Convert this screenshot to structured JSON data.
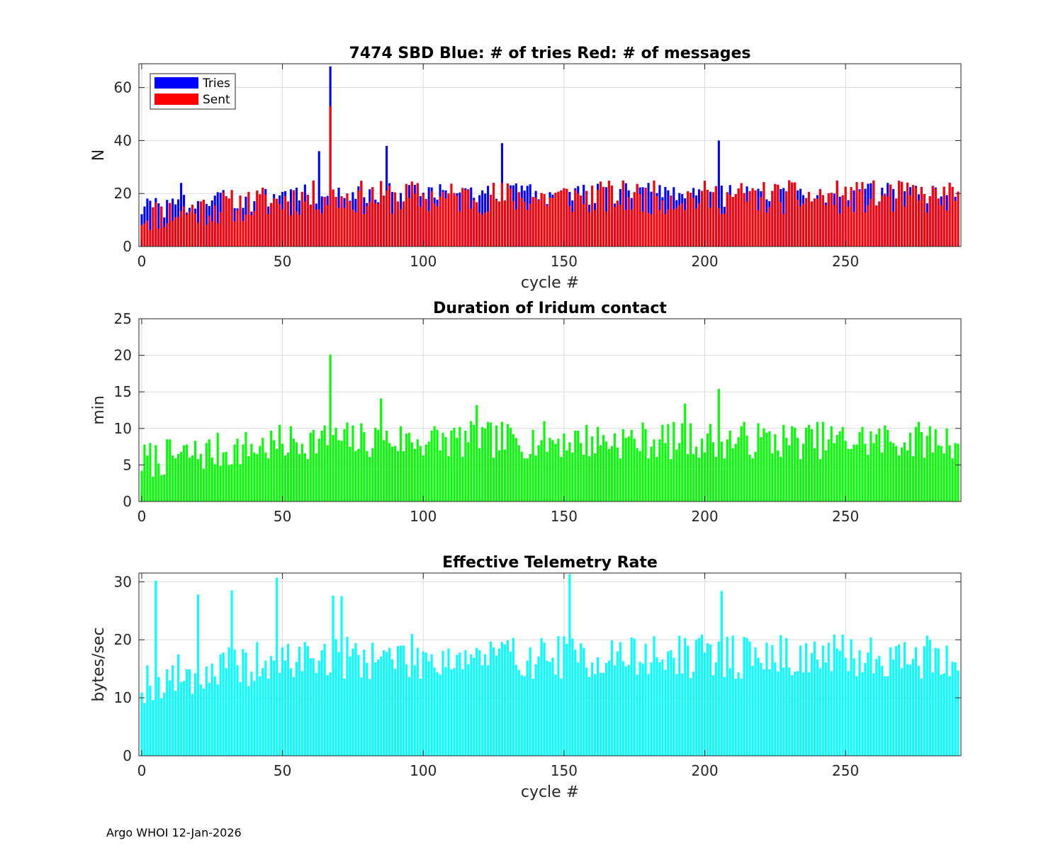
{
  "chart_data": [
    {
      "type": "bar",
      "stacked": true,
      "title": "7474 SBD  Blue: # of tries   Red: # of messages",
      "xlabel": "cycle #",
      "ylabel": "N",
      "xlim": [
        -1,
        291
      ],
      "ylim": [
        0,
        69
      ],
      "xticks": [
        0,
        50,
        100,
        150,
        200,
        250
      ],
      "yticks": [
        0,
        20,
        40,
        60
      ],
      "grid": true,
      "legend": "top-left",
      "series": [
        {
          "name": "Tries",
          "color": "#0000ff",
          "base": 10,
          "amplitude": 14,
          "seed": 3,
          "spikes": [
            [
              67,
              68
            ],
            [
              205,
              40
            ],
            [
              14,
              24
            ],
            [
              63,
              36
            ],
            [
              87,
              38
            ],
            [
              128,
              39
            ]
          ]
        },
        {
          "name": "Sent",
          "color": "#ff0000",
          "base": 5,
          "amplitude": 20,
          "seed": 11,
          "spikes": [
            [
              67,
              53
            ]
          ]
        }
      ]
    },
    {
      "type": "bar",
      "title": "Duration of Iridum contact",
      "xlabel": "",
      "ylabel": "min",
      "xlim": [
        -1,
        291
      ],
      "ylim": [
        0,
        25
      ],
      "xticks": [
        0,
        50,
        100,
        150,
        200,
        250
      ],
      "yticks": [
        0,
        5,
        10,
        15,
        20,
        25
      ],
      "grid": true,
      "series": [
        {
          "name": "Duration",
          "color": "#00ff00",
          "base": 3,
          "amplitude": 8,
          "seed": 7,
          "spikes": [
            [
              67,
              20.1
            ],
            [
              205,
              15.4
            ],
            [
              85,
              14.1
            ],
            [
              193,
              13.4
            ],
            [
              119,
              13.2
            ]
          ]
        }
      ]
    },
    {
      "type": "bar",
      "title": "Effective Telemetry Rate",
      "xlabel": "cycle #",
      "ylabel": "bytes/sec",
      "xlim": [
        -1,
        291
      ],
      "ylim": [
        0,
        31.5
      ],
      "xticks": [
        0,
        50,
        100,
        150,
        200,
        250
      ],
      "yticks": [
        0,
        10,
        20,
        30
      ],
      "grid": true,
      "series": [
        {
          "name": "Rate",
          "color": "#00ffff",
          "base": 9,
          "amplitude": 12,
          "seed": 19,
          "spikes": [
            [
              5,
              30.2
            ],
            [
              48,
              30.7
            ],
            [
              152,
              31.3
            ],
            [
              32,
              28.5
            ],
            [
              206,
              28.4
            ],
            [
              20,
              27.8
            ],
            [
              68,
              27.6
            ],
            [
              71,
              27.5
            ]
          ]
        }
      ]
    }
  ],
  "footer": "Argo WHOI 12-Jan-2026"
}
